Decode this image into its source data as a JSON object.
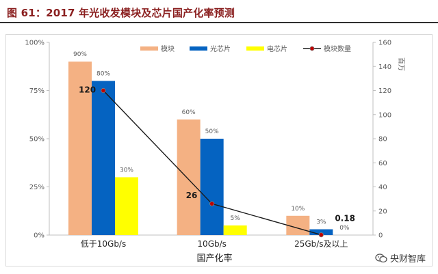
{
  "figure_title": "图 61：2017 年光收发模块及芯片国产化率预测",
  "watermark": "央财智库",
  "chart_data": {
    "type": "bar",
    "categories": [
      "低于10Gb/s",
      "10Gb/s",
      "25Gb/s及以上"
    ],
    "xlabel": "国产化率",
    "ylabel_right": "百万",
    "left_axis": {
      "min": 0,
      "max": 100,
      "ticks": [
        "0%",
        "25%",
        "50%",
        "75%",
        "100%"
      ]
    },
    "right_axis": {
      "min": 0,
      "max": 160,
      "ticks": [
        "0",
        "20",
        "40",
        "60",
        "80",
        "100",
        "120",
        "140",
        "160"
      ]
    },
    "series": [
      {
        "name": "模块",
        "type": "bar",
        "color": "#f4b183",
        "values": [
          90,
          60,
          10
        ],
        "labels": [
          "90%",
          "60%",
          "10%"
        ]
      },
      {
        "name": "光芯片",
        "type": "bar",
        "color": "#0563c1",
        "values": [
          80,
          50,
          3
        ],
        "labels": [
          "80%",
          "50%",
          "3%"
        ]
      },
      {
        "name": "电芯片",
        "type": "bar",
        "color": "#ffff00",
        "values": [
          30,
          5,
          0
        ],
        "labels": [
          "30%",
          "5%",
          "0%"
        ]
      },
      {
        "name": "模块数量",
        "type": "line",
        "axis": "right",
        "color": "#1a1a1a",
        "marker_color": "#c00000",
        "values": [
          120,
          26,
          0.18
        ],
        "labels": [
          "120",
          "26",
          "0.18"
        ]
      }
    ],
    "legend_position": "top"
  }
}
